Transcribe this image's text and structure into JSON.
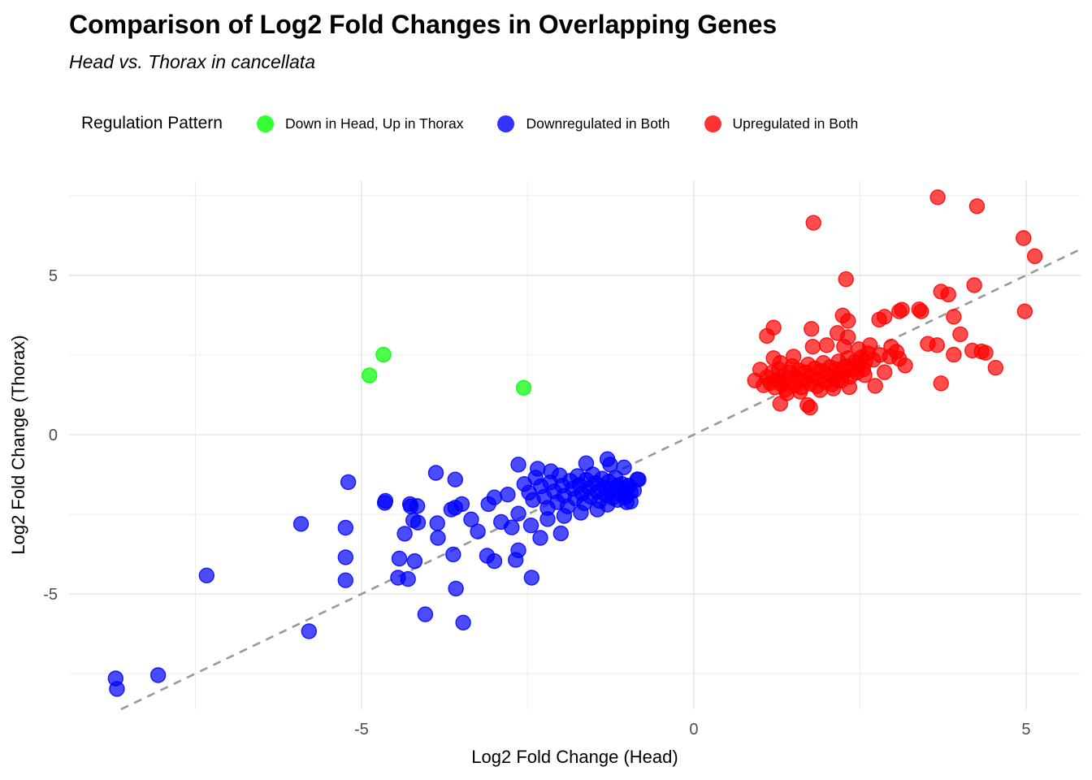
{
  "chart_data": {
    "type": "scatter",
    "title": "Comparison of Log2 Fold Changes in Overlapping Genes",
    "subtitle": "Head vs. Thorax in cancellata",
    "xlabel": "Log2 Fold Change (Head)",
    "ylabel": "Log2 Fold Change (Thorax)",
    "legend_title": "Regulation Pattern",
    "legend_position": "top",
    "grid": true,
    "background_color": "#FFFFFF",
    "major_grid_color": "#E3E3E3",
    "minor_grid_color": "#EDEDED",
    "tick_label_color": "#4D4D4D",
    "x_range": [
      -9.4,
      5.82
    ],
    "y_range": [
      -8.62,
      7.98
    ],
    "x_ticks": [
      -5,
      0,
      5
    ],
    "y_ticks": [
      -5,
      0,
      5
    ],
    "x_minor_ticks": [
      -7.5,
      -2.5,
      2.5
    ],
    "y_minor_ticks": [
      -7.5,
      -2.5,
      2.5,
      7.5
    ],
    "identity_line": {
      "equation": "y = x",
      "style": "dashed",
      "color": "#999999"
    },
    "point_alpha": 0.7,
    "point_radius": 9,
    "series": [
      {
        "name": "Down in Head, Up in Thorax",
        "color": "#00FF00",
        "points": [
          [
            -4.67,
            2.51
          ],
          [
            -4.88,
            1.86
          ],
          [
            -2.56,
            1.47
          ]
        ]
      },
      {
        "name": "Downregulated in Both",
        "color": "#0000FF",
        "points": [
          [
            -8.7,
            -7.65
          ],
          [
            -8.68,
            -7.98
          ],
          [
            -8.06,
            -7.55
          ],
          [
            -7.33,
            -4.42
          ],
          [
            -5.91,
            -2.8
          ],
          [
            -5.79,
            -6.17
          ],
          [
            -5.24,
            -2.92
          ],
          [
            -5.24,
            -3.85
          ],
          [
            -5.24,
            -4.57
          ],
          [
            -5.2,
            -1.49
          ],
          [
            -4.65,
            -2.14
          ],
          [
            -4.64,
            -2.08
          ],
          [
            -4.26,
            -2.25
          ],
          [
            -4.22,
            -2.69
          ],
          [
            -4.27,
            -2.18
          ],
          [
            -4.16,
            -2.24
          ],
          [
            -4.15,
            -2.76
          ],
          [
            -4.35,
            -3.11
          ],
          [
            -4.43,
            -3.89
          ],
          [
            -4.2,
            -3.97
          ],
          [
            -4.3,
            -4.53
          ],
          [
            -4.45,
            -4.49
          ],
          [
            -4.04,
            -5.64
          ],
          [
            -3.47,
            -5.9
          ],
          [
            -3.58,
            -4.83
          ],
          [
            -3.62,
            -3.76
          ],
          [
            -3.86,
            -2.78
          ],
          [
            -3.85,
            -3.24
          ],
          [
            -3.88,
            -1.2
          ],
          [
            -3.59,
            -1.41
          ],
          [
            -3.65,
            -2.35
          ],
          [
            -3.59,
            -2.29
          ],
          [
            -3.49,
            -2.18
          ],
          [
            -3.35,
            -2.66
          ],
          [
            -3.25,
            -3.04
          ],
          [
            -3.09,
            -2.18
          ],
          [
            -3.0,
            -1.97
          ],
          [
            -2.9,
            -2.74
          ],
          [
            -2.74,
            -2.91
          ],
          [
            -2.64,
            -3.63
          ],
          [
            -3.0,
            -3.97
          ],
          [
            -3.11,
            -3.8
          ],
          [
            -2.68,
            -3.93
          ],
          [
            -2.44,
            -4.49
          ],
          [
            -2.31,
            -3.24
          ],
          [
            -2.64,
            -2.48
          ],
          [
            -2.8,
            -1.88
          ],
          [
            -2.64,
            -0.94
          ],
          [
            -2.35,
            -1.07
          ],
          [
            -2.15,
            -1.15
          ],
          [
            -1.62,
            -0.9
          ],
          [
            -1.26,
            -0.94
          ],
          [
            -1.05,
            -1.03
          ],
          [
            -0.85,
            -1.4
          ],
          [
            -0.9,
            -1.75
          ],
          [
            -0.95,
            -2.1
          ],
          [
            -1.3,
            -0.77
          ],
          [
            -0.83,
            -1.41
          ],
          [
            -0.99,
            -1.66
          ],
          [
            -1.01,
            -2.12
          ],
          [
            -2.55,
            -1.55
          ],
          [
            -2.48,
            -1.82
          ],
          [
            -2.42,
            -2.05
          ],
          [
            -2.38,
            -1.35
          ],
          [
            -2.3,
            -1.62
          ],
          [
            -2.25,
            -1.95
          ],
          [
            -2.2,
            -2.3
          ],
          [
            -2.16,
            -1.5
          ],
          [
            -2.1,
            -1.78
          ],
          [
            -2.05,
            -2.12
          ],
          [
            -2.02,
            -1.28
          ],
          [
            -1.98,
            -1.6
          ],
          [
            -1.95,
            -1.92
          ],
          [
            -1.9,
            -2.25
          ],
          [
            -1.86,
            -1.45
          ],
          [
            -1.82,
            -1.7
          ],
          [
            -1.78,
            -2.0
          ],
          [
            -1.75,
            -1.3
          ],
          [
            -1.72,
            -1.58
          ],
          [
            -1.68,
            -1.85
          ],
          [
            -1.65,
            -2.15
          ],
          [
            -1.62,
            -1.42
          ],
          [
            -1.58,
            -1.68
          ],
          [
            -1.55,
            -1.95
          ],
          [
            -1.52,
            -1.25
          ],
          [
            -1.48,
            -1.52
          ],
          [
            -1.45,
            -1.8
          ],
          [
            -1.42,
            -2.08
          ],
          [
            -1.38,
            -1.38
          ],
          [
            -1.35,
            -1.65
          ],
          [
            -1.32,
            -1.9
          ],
          [
            -1.28,
            -1.48
          ],
          [
            -1.25,
            -1.72
          ],
          [
            -1.22,
            -1.98
          ],
          [
            -1.18,
            -1.35
          ],
          [
            -1.15,
            -1.6
          ],
          [
            -1.12,
            -1.85
          ],
          [
            -1.08,
            -1.55
          ],
          [
            -1.05,
            -1.75
          ],
          [
            -1.02,
            -1.95
          ],
          [
            -0.98,
            -1.6
          ],
          [
            -0.95,
            -1.8
          ],
          [
            -1.7,
            -2.45
          ],
          [
            -1.95,
            -2.55
          ],
          [
            -2.2,
            -2.65
          ],
          [
            -1.45,
            -2.35
          ],
          [
            -1.3,
            -2.2
          ],
          [
            -2.45,
            -2.85
          ],
          [
            -1.15,
            -2.05
          ],
          [
            -2.0,
            -3.1
          ]
        ]
      },
      {
        "name": "Upregulated in Both",
        "color": "#FF0000",
        "points": [
          [
            3.67,
            7.45
          ],
          [
            4.26,
            7.17
          ],
          [
            1.8,
            6.65
          ],
          [
            4.96,
            6.17
          ],
          [
            5.13,
            5.6
          ],
          [
            2.29,
            4.88
          ],
          [
            3.72,
            4.49
          ],
          [
            3.83,
            4.4
          ],
          [
            4.22,
            4.69
          ],
          [
            3.13,
            3.92
          ],
          [
            3.39,
            3.93
          ],
          [
            4.98,
            3.87
          ],
          [
            4.33,
            2.61
          ],
          [
            4.39,
            2.57
          ],
          [
            4.54,
            2.1
          ],
          [
            0.92,
            1.7
          ],
          [
            1.3,
            0.97
          ],
          [
            1.71,
            0.93
          ],
          [
            1.75,
            0.85
          ],
          [
            2.24,
            3.74
          ],
          [
            2.32,
            3.57
          ],
          [
            2.79,
            3.61
          ],
          [
            2.87,
            3.7
          ],
          [
            3.09,
            3.87
          ],
          [
            3.42,
            3.87
          ],
          [
            3.91,
            3.7
          ],
          [
            4.01,
            3.15
          ],
          [
            4.19,
            2.64
          ],
          [
            1.1,
            3.1
          ],
          [
            1.77,
            3.32
          ],
          [
            2.16,
            3.19
          ],
          [
            2.32,
            3.06
          ],
          [
            1.79,
            2.76
          ],
          [
            2.0,
            2.81
          ],
          [
            2.26,
            2.76
          ],
          [
            2.48,
            2.68
          ],
          [
            2.65,
            2.81
          ],
          [
            2.97,
            2.76
          ],
          [
            3.09,
            2.38
          ],
          [
            3.18,
            2.17
          ],
          [
            3.52,
            2.85
          ],
          [
            3.66,
            2.81
          ],
          [
            3.91,
            2.51
          ],
          [
            2.57,
            1.87
          ],
          [
            2.73,
            1.53
          ],
          [
            2.87,
            1.96
          ],
          [
            2.34,
            1.49
          ],
          [
            2.16,
            1.7
          ],
          [
            3.72,
            1.61
          ],
          [
            1.2,
            3.36
          ],
          [
            1.0,
            2.04
          ],
          [
            2.62,
            2.55
          ],
          [
            2.7,
            2.35
          ],
          [
            2.8,
            2.5
          ],
          [
            2.95,
            2.45
          ],
          [
            3.05,
            2.6
          ],
          [
            1.5,
            2.45
          ],
          [
            1.3,
            2.25
          ],
          [
            1.2,
            2.4
          ],
          [
            1.05,
            1.55
          ],
          [
            1.1,
            1.8
          ],
          [
            1.15,
            1.62
          ],
          [
            1.18,
            1.95
          ],
          [
            1.22,
            1.48
          ],
          [
            1.25,
            1.72
          ],
          [
            1.28,
            2.05
          ],
          [
            1.32,
            1.58
          ],
          [
            1.35,
            1.85
          ],
          [
            1.38,
            1.42
          ],
          [
            1.42,
            1.68
          ],
          [
            1.45,
            1.95
          ],
          [
            1.48,
            2.15
          ],
          [
            1.52,
            1.55
          ],
          [
            1.55,
            1.78
          ],
          [
            1.58,
            2.02
          ],
          [
            1.62,
            1.48
          ],
          [
            1.65,
            1.72
          ],
          [
            1.68,
            1.95
          ],
          [
            1.72,
            2.2
          ],
          [
            1.75,
            1.6
          ],
          [
            1.78,
            1.85
          ],
          [
            1.82,
            2.08
          ],
          [
            1.85,
            1.52
          ],
          [
            1.88,
            1.75
          ],
          [
            1.92,
            2.0
          ],
          [
            1.95,
            2.25
          ],
          [
            1.98,
            1.65
          ],
          [
            2.02,
            1.88
          ],
          [
            2.05,
            2.12
          ],
          [
            2.08,
            1.58
          ],
          [
            2.12,
            1.8
          ],
          [
            2.15,
            2.05
          ],
          [
            2.18,
            2.3
          ],
          [
            2.22,
            1.7
          ],
          [
            2.25,
            1.92
          ],
          [
            2.28,
            2.15
          ],
          [
            2.32,
            2.4
          ],
          [
            2.35,
            1.82
          ],
          [
            2.38,
            2.05
          ],
          [
            2.42,
            2.28
          ],
          [
            2.45,
            1.95
          ],
          [
            2.48,
            2.18
          ],
          [
            2.52,
            2.42
          ],
          [
            2.55,
            2.05
          ],
          [
            2.58,
            2.3
          ],
          [
            1.4,
            1.3
          ],
          [
            1.6,
            1.35
          ],
          [
            1.9,
            1.4
          ],
          [
            2.1,
            1.45
          ]
        ]
      }
    ]
  }
}
